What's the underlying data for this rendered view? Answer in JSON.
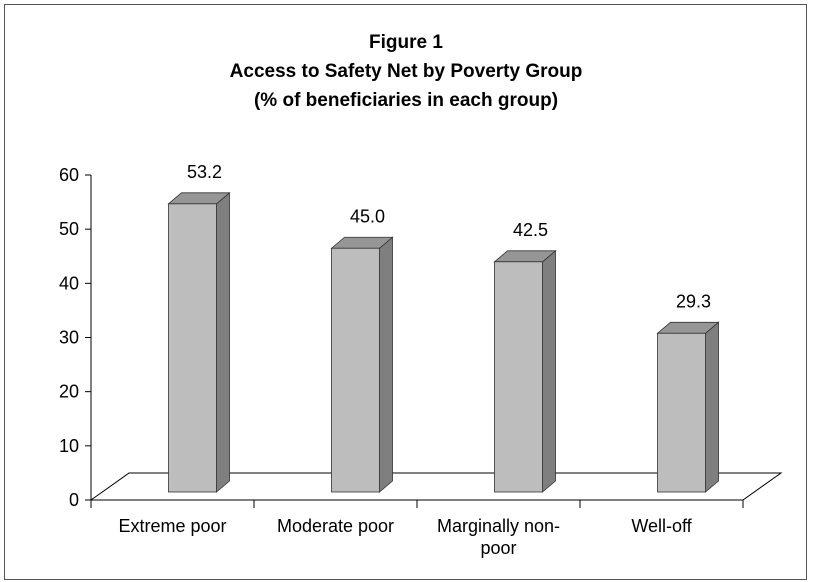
{
  "chart_data": {
    "type": "bar",
    "title": [
      "Figure 1",
      "Access to Safety Net by Poverty Group",
      "(% of beneficiaries in each group)"
    ],
    "categories": [
      [
        "Extreme poor"
      ],
      [
        "Moderate poor"
      ],
      [
        "Marginally non-",
        "poor"
      ],
      [
        "Well-off"
      ]
    ],
    "values": [
      53.2,
      45.0,
      42.5,
      29.3
    ],
    "value_labels": [
      "53.2",
      "45.0",
      "42.5",
      "29.3"
    ],
    "ylim": [
      0,
      60
    ],
    "yticks": [
      0,
      10,
      20,
      30,
      40,
      50,
      60
    ],
    "xlabel": "",
    "ylabel": "",
    "grid": false,
    "legend": "none",
    "bar_3d": true,
    "colors": {
      "bar_front": "#bdbdbd",
      "bar_side": "#7f7f7f",
      "bar_top": "#969696",
      "edge": "#333333"
    }
  }
}
